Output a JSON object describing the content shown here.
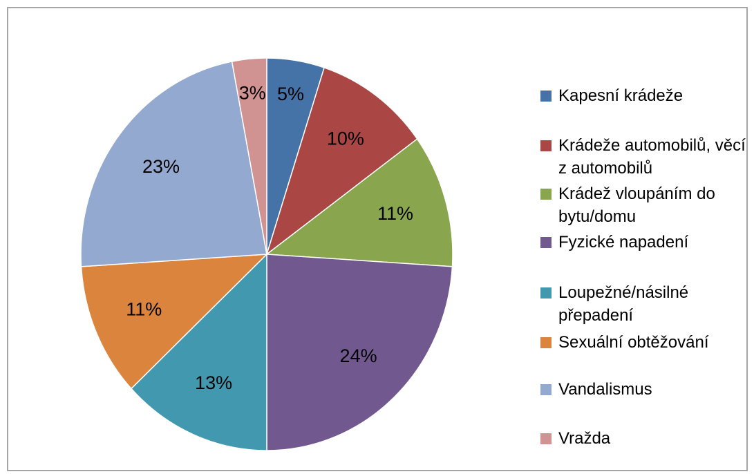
{
  "chart_data": {
    "type": "pie",
    "categories": [
      "Kapesní krádeže",
      "Krádeže automobilů, věcí z automobilů",
      "Krádež vloupáním do bytu/domu",
      "Fyzické napadení",
      "Loupežné/násilné přepadení",
      "Sexuální obtěžování",
      "Vandalismus",
      "Vražda"
    ],
    "values": [
      5,
      10,
      11,
      24,
      13,
      11,
      23,
      3
    ],
    "value_labels": [
      "5%",
      "10%",
      "11%",
      "24%",
      "13%",
      "11%",
      "23%",
      "3%"
    ],
    "colors": [
      "#4572a7",
      "#aa4643",
      "#89a54e",
      "#71588f",
      "#4198af",
      "#db843d",
      "#93a9cf",
      "#d19392"
    ],
    "legend": "right"
  }
}
